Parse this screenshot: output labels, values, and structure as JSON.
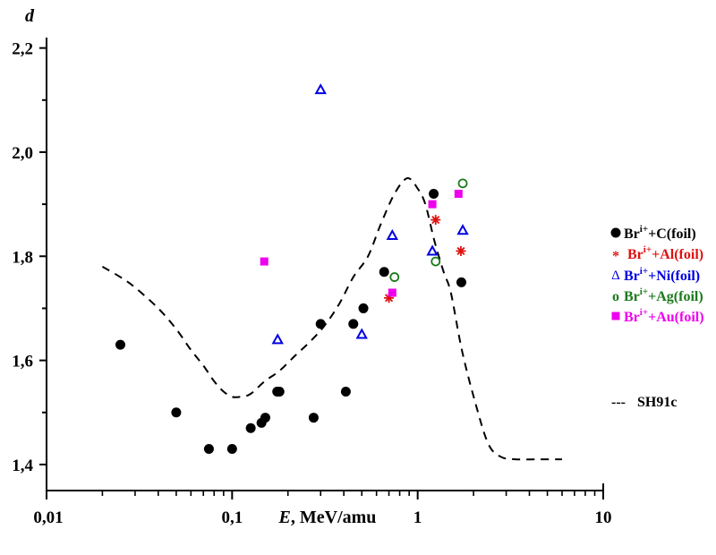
{
  "chart_data": {
    "type": "scatter",
    "title": "",
    "xlabel_italic": "E",
    "xlabel_rest": ", MeV/amu",
    "ylabel": "d",
    "xscale": "log",
    "xlim": [
      0.01,
      10
    ],
    "ylim": [
      1.35,
      2.22
    ],
    "grid": false,
    "legend_position": "right",
    "x_ticks": [
      {
        "value": 0.01,
        "label": "0,01"
      },
      {
        "value": 0.1,
        "label": "0,1"
      },
      {
        "value": 1,
        "label": "1"
      },
      {
        "value": 10,
        "label": "10"
      }
    ],
    "y_ticks": [
      {
        "value": 1.4,
        "label": "1,4"
      },
      {
        "value": 1.6,
        "label": "1,6"
      },
      {
        "value": 1.8,
        "label": "1,8"
      },
      {
        "value": 2.0,
        "label": "2,0"
      },
      {
        "value": 2.2,
        "label": "2,2"
      }
    ],
    "y_minor_ticks": [
      1.5,
      1.7,
      1.9,
      2.1
    ],
    "series": [
      {
        "name": "C(foil)",
        "label_prefix": "Br",
        "label_sup": "i+",
        "label_suffix": "+C(foil)",
        "marker": "circle",
        "color": "#000000",
        "points": [
          [
            0.025,
            1.63
          ],
          [
            0.05,
            1.5
          ],
          [
            0.075,
            1.43
          ],
          [
            0.1,
            1.43
          ],
          [
            0.126,
            1.47
          ],
          [
            0.144,
            1.48
          ],
          [
            0.151,
            1.49
          ],
          [
            0.175,
            1.54
          ],
          [
            0.18,
            1.54
          ],
          [
            0.275,
            1.49
          ],
          [
            0.3,
            1.67
          ],
          [
            0.41,
            1.54
          ],
          [
            0.45,
            1.67
          ],
          [
            0.51,
            1.7
          ],
          [
            0.66,
            1.77
          ],
          [
            1.22,
            1.92
          ],
          [
            1.72,
            1.75
          ]
        ]
      },
      {
        "name": "Al(foil)",
        "label_prefix": "Br",
        "label_sup": "i+",
        "label_suffix": "+Al(foil)",
        "marker": "star",
        "color": "#e01010",
        "points": [
          [
            0.7,
            1.72
          ],
          [
            1.25,
            1.87
          ],
          [
            1.71,
            1.81
          ]
        ]
      },
      {
        "name": "Ni(foil)",
        "label_prefix": "Br",
        "label_sup": "i+",
        "label_suffix": "+Ni(foil)",
        "marker": "triangle",
        "color": "#0000e0",
        "points": [
          [
            0.176,
            1.64
          ],
          [
            0.3,
            2.12
          ],
          [
            0.5,
            1.65
          ],
          [
            0.73,
            1.84
          ],
          [
            1.2,
            1.81
          ],
          [
            1.75,
            1.85
          ]
        ]
      },
      {
        "name": "Ag(foil)",
        "label_prefix": "Br",
        "label_sup": "i+",
        "label_suffix": "+Ag(foil)",
        "marker": "open-circle",
        "color": "#1a7a1a",
        "points": [
          [
            0.75,
            1.76
          ],
          [
            1.25,
            1.79
          ],
          [
            1.75,
            1.94
          ]
        ]
      },
      {
        "name": "Au(foil)",
        "label_prefix": "Br",
        "label_sup": "i+",
        "label_suffix": "+Au(foil)",
        "marker": "square",
        "color": "#ee00ee",
        "points": [
          [
            0.149,
            1.79
          ],
          [
            0.73,
            1.73
          ],
          [
            1.2,
            1.9
          ],
          [
            1.66,
            1.92
          ]
        ]
      }
    ],
    "curve": {
      "name": "SH91c",
      "legend_symbol": "---",
      "style": "dashed",
      "color": "#000000",
      "points": [
        [
          0.02,
          1.78
        ],
        [
          0.025,
          1.76
        ],
        [
          0.03,
          1.74
        ],
        [
          0.04,
          1.7
        ],
        [
          0.05,
          1.66
        ],
        [
          0.06,
          1.62
        ],
        [
          0.07,
          1.59
        ],
        [
          0.08,
          1.56
        ],
        [
          0.09,
          1.54
        ],
        [
          0.1,
          1.53
        ],
        [
          0.11,
          1.53
        ],
        [
          0.125,
          1.535
        ],
        [
          0.15,
          1.56
        ],
        [
          0.18,
          1.58
        ],
        [
          0.22,
          1.61
        ],
        [
          0.27,
          1.64
        ],
        [
          0.32,
          1.67
        ],
        [
          0.38,
          1.71
        ],
        [
          0.45,
          1.76
        ],
        [
          0.54,
          1.8
        ],
        [
          0.63,
          1.86
        ],
        [
          0.75,
          1.92
        ],
        [
          0.88,
          1.95
        ],
        [
          1.0,
          1.93
        ],
        [
          1.1,
          1.9
        ],
        [
          1.23,
          1.83
        ],
        [
          1.38,
          1.77
        ],
        [
          1.51,
          1.73
        ],
        [
          1.73,
          1.62
        ],
        [
          2.04,
          1.52
        ],
        [
          2.4,
          1.44
        ],
        [
          2.8,
          1.415
        ],
        [
          3.36,
          1.41
        ],
        [
          4.5,
          1.41
        ],
        [
          6.0,
          1.41
        ]
      ]
    }
  }
}
